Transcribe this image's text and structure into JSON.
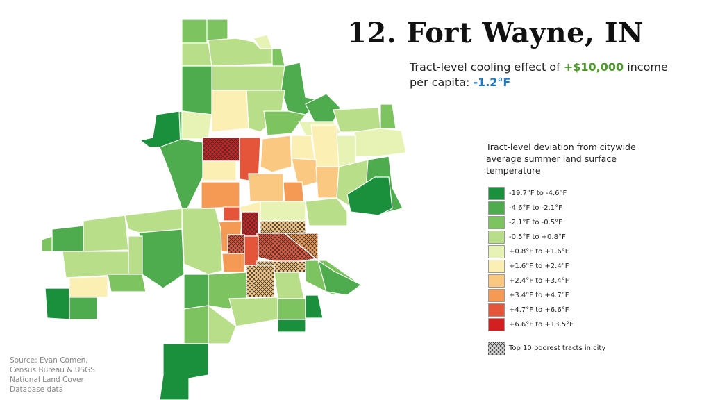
{
  "header": {
    "title": "12. Fort Wayne, IN",
    "subtitle": {
      "lead": "Tract-level cooling effect of",
      "amount": "+$10,000",
      "middle": "income per capita:",
      "effect": "-1.2°F"
    }
  },
  "legend": {
    "title": "Tract-level deviation from citywide average summer land surface temperature",
    "items": [
      {
        "label": "-19.7°F to -4.6°F",
        "color": "#1a8f3c"
      },
      {
        "label": "-4.6°F to -2.1°F",
        "color": "#4eac4f"
      },
      {
        "label": "-2.1°F to -0.5°F",
        "color": "#7dc461"
      },
      {
        "label": "-0.5°F to +0.8°F",
        "color": "#b9de8a"
      },
      {
        "label": "+0.8°F to +1.6°F",
        "color": "#e6f3b4"
      },
      {
        "label": "+1.6°F to +2.4°F",
        "color": "#fcefb4"
      },
      {
        "label": "+2.4°F to +3.4°F",
        "color": "#fbc882"
      },
      {
        "label": "+3.4°F to +4.7°F",
        "color": "#f49a55"
      },
      {
        "label": "+4.7°F to +6.6°F",
        "color": "#e5553a"
      },
      {
        "label": "+6.6°F to +13.5°F",
        "color": "#d31f1f"
      }
    ],
    "hatch_label": "Top 10 poorest tracts in city"
  },
  "source": "Source: Evan Comen, Census Bureau & USGS National Land Cover Database data"
}
